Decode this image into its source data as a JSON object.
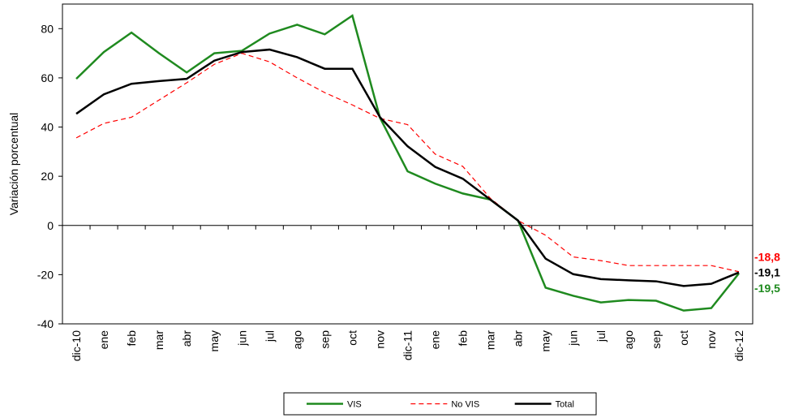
{
  "chart_data": {
    "type": "line",
    "y_label": "Variación porcentual",
    "categories": [
      "dic-10",
      "ene",
      "feb",
      "mar",
      "abr",
      "may",
      "jun",
      "jul",
      "ago",
      "sep",
      "oct",
      "nov",
      "dic-11",
      "ene",
      "feb",
      "mar",
      "abr",
      "may",
      "jun",
      "jul",
      "ago",
      "sep",
      "oct",
      "nov",
      "dic-12"
    ],
    "series": [
      {
        "name": "VIS",
        "color": "#1f8a1f",
        "dash": false,
        "values": [
          59.6,
          70.5,
          78.4,
          70,
          62.2,
          70,
          71,
          78,
          81.6,
          77.7,
          85.3,
          43.8,
          22,
          17,
          13,
          10.5,
          2,
          -25.3,
          -28.6,
          -31.3,
          -30.3,
          -30.6,
          -34.6,
          -33.6,
          -19.5
        ],
        "value_labels": [
          null,
          null,
          null,
          null,
          null,
          null,
          null,
          null,
          null,
          null,
          null,
          null,
          null,
          null,
          null,
          null,
          null,
          null,
          null,
          null,
          null,
          null,
          null,
          null,
          "-19,5"
        ]
      },
      {
        "name": "No VIS",
        "color": "#ff0000",
        "dash": true,
        "values": [
          35.6,
          41.5,
          44,
          51,
          58,
          65.5,
          70,
          66.5,
          60,
          54,
          49,
          43.5,
          41,
          29,
          24,
          11,
          2,
          -4,
          -12.8,
          -14.3,
          -16.3,
          -16.3,
          -16.3,
          -16.3,
          -18.8
        ],
        "value_labels": [
          null,
          null,
          null,
          null,
          null,
          null,
          null,
          null,
          null,
          null,
          null,
          null,
          null,
          null,
          null,
          null,
          null,
          null,
          null,
          null,
          null,
          null,
          null,
          null,
          "-18,8"
        ]
      },
      {
        "name": "Total",
        "color": "#000000",
        "dash": false,
        "values": [
          45.4,
          53.3,
          57.6,
          58.7,
          59.6,
          67,
          70.5,
          71.5,
          68.4,
          63.7,
          63.7,
          44,
          32.2,
          23.8,
          19,
          10.5,
          2,
          -13.5,
          -19.8,
          -21.8,
          -22.3,
          -22.7,
          -24.6,
          -23.7,
          -19.1
        ],
        "value_labels": [
          null,
          null,
          null,
          null,
          null,
          null,
          null,
          null,
          null,
          null,
          null,
          null,
          null,
          null,
          null,
          null,
          null,
          null,
          null,
          null,
          null,
          null,
          null,
          null,
          "-19,1"
        ]
      }
    ],
    "ylim": [
      -40,
      90
    ],
    "yticks": [
      -40,
      -20,
      0,
      20,
      40,
      60,
      80
    ],
    "legend": "bottom"
  }
}
